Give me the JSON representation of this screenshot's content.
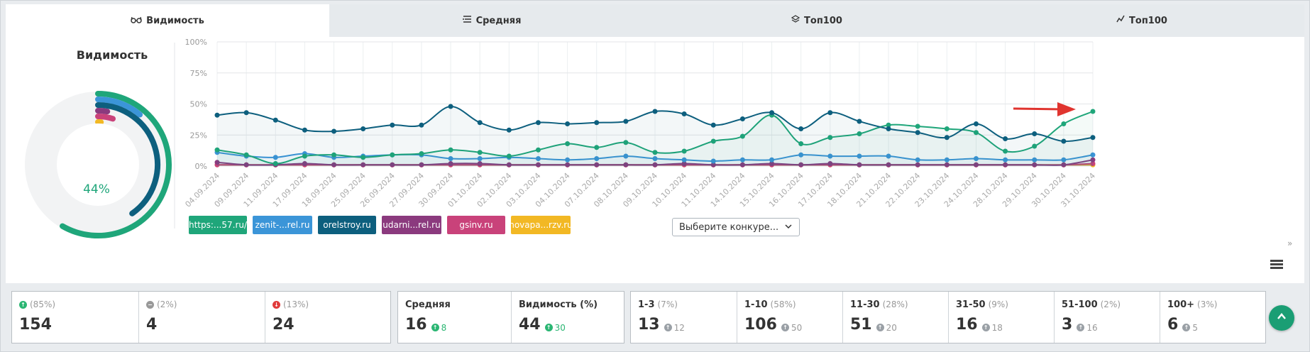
{
  "tabs": [
    {
      "label": "Видимость",
      "icon": "glasses-icon",
      "active": true
    },
    {
      "label": "Средняя",
      "icon": "list-icon",
      "active": false
    },
    {
      "label": "Топ100",
      "icon": "layers-icon",
      "active": false
    },
    {
      "label": "Топ100",
      "icon": "trend-icon",
      "active": false
    }
  ],
  "visibility": {
    "title": "Видимость",
    "percent": "44%"
  },
  "chart_data": {
    "type": "line",
    "y_ticks": [
      "100%",
      "75%",
      "50%",
      "25%",
      "0%"
    ],
    "ylim": [
      0,
      100
    ],
    "categories": [
      "04.09.2024",
      "09.09.2024",
      "11.09.2024",
      "17.09.2024",
      "18.09.2024",
      "25.09.2024",
      "26.09.2024",
      "27.09.2024",
      "30.09.2024",
      "01.10.2024",
      "02.10.2024",
      "03.10.2024",
      "04.10.2024",
      "07.10.2024",
      "08.10.2024",
      "09.10.2024",
      "10.10.2024",
      "11.10.2024",
      "14.10.2024",
      "15.10.2024",
      "16.10.2024",
      "17.10.2024",
      "18.10.2024",
      "21.10.2024",
      "22.10.2024",
      "23.10.2024",
      "24.10.2024",
      "28.10.2024",
      "29.10.2024",
      "30.10.2024",
      "31.10.2024"
    ],
    "series": [
      {
        "name": "https:...57.ru/",
        "color": "#1fa67a",
        "values": [
          13,
          9,
          2,
          8,
          9,
          7,
          9,
          10,
          13,
          11,
          8,
          13,
          18,
          15,
          19,
          11,
          12,
          20,
          24,
          41,
          18,
          23,
          26,
          33,
          32,
          30,
          27,
          12,
          16,
          34,
          44
        ]
      },
      {
        "name": "zenit-...rel.ru",
        "color": "#3b95d8",
        "values": [
          11,
          8,
          7,
          10,
          7,
          8,
          9,
          9,
          6,
          6,
          7,
          6,
          5,
          6,
          8,
          6,
          5,
          4,
          5,
          5,
          9,
          8,
          8,
          8,
          5,
          5,
          6,
          5,
          5,
          5,
          9
        ]
      },
      {
        "name": "orelstroy.ru",
        "color": "#0d5f7e",
        "values": [
          41,
          43,
          37,
          29,
          28,
          30,
          33,
          33,
          48,
          35,
          29,
          35,
          34,
          35,
          36,
          44,
          42,
          33,
          38,
          43,
          30,
          43,
          36,
          30,
          27,
          23,
          34,
          22,
          26,
          20,
          23
        ]
      },
      {
        "name": "udarni...rel.ru",
        "color": "#8b3a7e",
        "values": [
          3,
          1,
          1,
          2,
          1,
          1,
          1,
          1,
          2,
          2,
          1,
          1,
          1,
          1,
          1,
          1,
          2,
          1,
          1,
          2,
          1,
          2,
          1,
          1,
          1,
          1,
          1,
          1,
          1,
          1,
          5
        ]
      },
      {
        "name": "gsinv.ru",
        "color": "#c9427a",
        "values": [
          1,
          1,
          1,
          1,
          1,
          1,
          1,
          1,
          1,
          1,
          1,
          1,
          1,
          1,
          1,
          1,
          1,
          1,
          1,
          1,
          1,
          1,
          1,
          1,
          1,
          1,
          1,
          1,
          1,
          1,
          2
        ]
      },
      {
        "name": "novapa...rzv.ru",
        "color": "#f2b824",
        "values": [
          1,
          1,
          1,
          1,
          1,
          1,
          1,
          1,
          1,
          1,
          1,
          1,
          1,
          1,
          1,
          1,
          1,
          1,
          1,
          1,
          1,
          1,
          1,
          1,
          1,
          1,
          1,
          1,
          1,
          1,
          1
        ]
      }
    ]
  },
  "competitor_select": {
    "placeholder": "Выберите конкуре..."
  },
  "stats_group1": [
    {
      "icon": "up",
      "pct": "(85%)",
      "value": "154"
    },
    {
      "icon": "neutral",
      "pct": "(2%)",
      "value": "4"
    },
    {
      "icon": "down",
      "pct": "(13%)",
      "value": "24"
    }
  ],
  "stats_group2": [
    {
      "label": "Средняя",
      "value": "16",
      "delta": "8"
    },
    {
      "label": "Видимость (%)",
      "value": "44",
      "delta": "30"
    }
  ],
  "stats_group3": [
    {
      "label": "1-3",
      "pct": "(7%)",
      "value": "13",
      "delta": "12"
    },
    {
      "label": "1-10",
      "pct": "(58%)",
      "value": "106",
      "delta": "50"
    },
    {
      "label": "11-30",
      "pct": "(28%)",
      "value": "51",
      "delta": "20"
    },
    {
      "label": "31-50",
      "pct": "(9%)",
      "value": "16",
      "delta": "18"
    },
    {
      "label": "51-100",
      "pct": "(2%)",
      "value": "3",
      "delta": "16"
    },
    {
      "label": "100+",
      "pct": "(3%)",
      "value": "6",
      "delta": "5"
    }
  ],
  "donut_colors": [
    "#1fa67a",
    "#3b95d8",
    "#0d5f7e",
    "#8b3a7e",
    "#c9427a",
    "#f2b824"
  ]
}
